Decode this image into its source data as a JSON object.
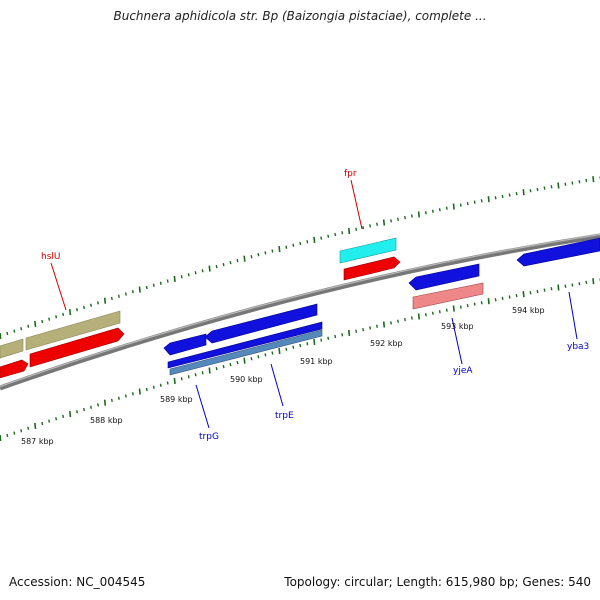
{
  "title": "Buchnera aphidicola str. Bp (Baizongia pistaciae), complete ...",
  "footer": {
    "accession": "Accession: NC_004545",
    "summary": "Topology: circular; Length: 615,980 bp; Genes: 540"
  },
  "ticks": [
    "587 kbp",
    "588 kbp",
    "589 kbp",
    "590 kbp",
    "591 kbp",
    "592 kbp",
    "593 kbp",
    "594 kbp"
  ],
  "genes": [
    {
      "label": "hslU",
      "strand": "forward"
    },
    {
      "label": "fpr",
      "strand": "forward"
    },
    {
      "label": "trpG",
      "strand": "reverse"
    },
    {
      "label": "trpE",
      "strand": "reverse"
    },
    {
      "label": "yjeA",
      "strand": "reverse"
    },
    {
      "label": "yba3",
      "strand": "reverse"
    }
  ],
  "colors": {
    "forward_label": "#cc0000",
    "reverse_label": "#0000cc",
    "backbone": "#888888",
    "ticks": "#1a6b1a",
    "olive": "#b5b07a",
    "red": "#ee0000",
    "blue": "#1111dd",
    "cyan": "#22eeee",
    "pink": "#ee8888",
    "steel": "#5588bb"
  }
}
